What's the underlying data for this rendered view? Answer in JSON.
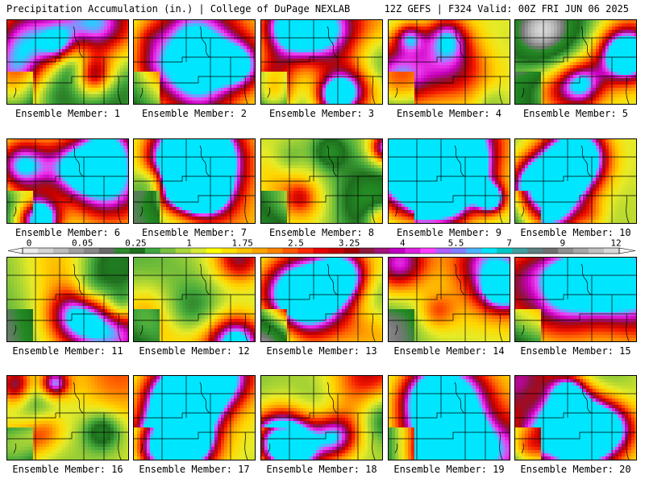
{
  "header": {
    "title_left": "Precipitation Accumulation (in.) | College of DuPage NEXLAB",
    "title_right": "12Z GEFS | F324 Valid: 00Z FRI JUN 06 2025"
  },
  "colorbar": {
    "tick_labels": [
      "0",
      "0.05",
      "0.25",
      "1",
      "1.75",
      "2.5",
      "3.25",
      "4",
      "5.5",
      "7",
      "9",
      "12"
    ],
    "colors": [
      "#ececec",
      "#d4d4d4",
      "#bcbcbc",
      "#a0a0a0",
      "#888888",
      "#6a6a6a",
      "#2e8b2e",
      "#1f6f1f",
      "#3fa73f",
      "#79c043",
      "#a9d63c",
      "#d7ea35",
      "#ffff00",
      "#ffe100",
      "#ffc400",
      "#ffa400",
      "#ff8200",
      "#ff5a00",
      "#ff2a00",
      "#e60000",
      "#c80000",
      "#a00000",
      "#8c1a3c",
      "#a0147a",
      "#c000c0",
      "#e020e0",
      "#ff40ff",
      "#b060ff",
      "#8080ff",
      "#4cb4ff",
      "#00e6ff",
      "#00c8c8",
      "#40a0a0",
      "#608080",
      "#707070",
      "#909090",
      "#a8a8a8",
      "#c0c0c0",
      "#d8d8d8"
    ]
  },
  "members": [
    {
      "label": "Ensemble Member: 1"
    },
    {
      "label": "Ensemble Member: 2"
    },
    {
      "label": "Ensemble Member: 3"
    },
    {
      "label": "Ensemble Member: 4"
    },
    {
      "label": "Ensemble Member: 5"
    },
    {
      "label": "Ensemble Member: 6"
    },
    {
      "label": "Ensemble Member: 7"
    },
    {
      "label": "Ensemble Member: 8"
    },
    {
      "label": "Ensemble Member: 9"
    },
    {
      "label": "Ensemble Member: 10"
    },
    {
      "label": "Ensemble Member: 11"
    },
    {
      "label": "Ensemble Member: 12"
    },
    {
      "label": "Ensemble Member: 13"
    },
    {
      "label": "Ensemble Member: 14"
    },
    {
      "label": "Ensemble Member: 15"
    },
    {
      "label": "Ensemble Member: 16"
    },
    {
      "label": "Ensemble Member: 17"
    },
    {
      "label": "Ensemble Member: 18"
    },
    {
      "label": "Ensemble Member: 19"
    },
    {
      "label": "Ensemble Member: 20"
    }
  ]
}
